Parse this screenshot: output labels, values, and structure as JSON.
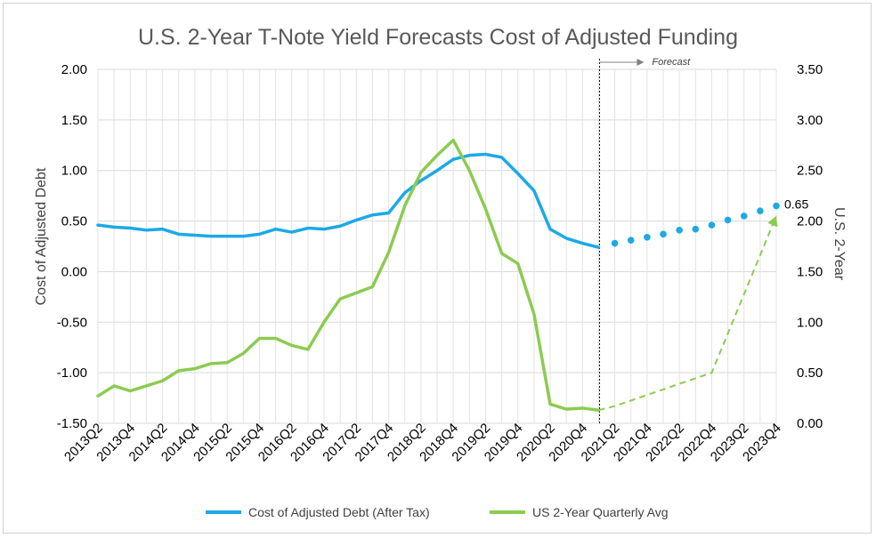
{
  "chart_data": {
    "type": "line",
    "title": "U.S. 2-Year T-Note Yield Forecasts Cost of Adjusted Funding",
    "ylabel_left": "Cost of Adjusted Debt",
    "ylabel_right": "U.S. 2-Year",
    "ylim_left": [
      -1.5,
      2.0
    ],
    "ylim_right": [
      0.0,
      3.5
    ],
    "yticks_left": [
      "2.00",
      "1.50",
      "1.00",
      "0.50",
      "0.00",
      "-0.50",
      "-1.00",
      "-1.50"
    ],
    "yticks_right": [
      "3.50",
      "3.00",
      "2.50",
      "2.00",
      "1.50",
      "1.00",
      "0.50",
      "0.00"
    ],
    "xtick_labels": [
      "2013Q2",
      "2013Q4",
      "2014Q2",
      "2014Q4",
      "2015Q2",
      "2015Q4",
      "2016Q2",
      "2016Q4",
      "2017Q2",
      "2017Q4",
      "2018Q2",
      "2018Q4",
      "2019Q2",
      "2019Q4",
      "2020Q2",
      "2020Q4",
      "2021Q2",
      "2021Q4",
      "2022Q2",
      "2022Q4",
      "2023Q2",
      "2023Q4"
    ],
    "forecast_label": "Forecast",
    "grid": true,
    "legend_position": "bottom",
    "series": [
      {
        "name": "Cost of Adjusted Debt (After Tax)",
        "axis": "left",
        "color": "#1CA9E6",
        "style": "solid",
        "x": [
          "2013Q2",
          "2013Q3",
          "2013Q4",
          "2014Q1",
          "2014Q2",
          "2014Q3",
          "2014Q4",
          "2015Q1",
          "2015Q2",
          "2015Q3",
          "2015Q4",
          "2016Q1",
          "2016Q2",
          "2016Q3",
          "2016Q4",
          "2017Q1",
          "2017Q2",
          "2017Q3",
          "2017Q4",
          "2018Q1",
          "2018Q2",
          "2018Q3",
          "2018Q4",
          "2019Q1",
          "2019Q2",
          "2019Q3",
          "2019Q4",
          "2020Q1",
          "2020Q2",
          "2020Q3",
          "2020Q4",
          "2021Q1"
        ],
        "values": [
          0.46,
          0.44,
          0.43,
          0.41,
          0.42,
          0.37,
          0.36,
          0.35,
          0.35,
          0.35,
          0.37,
          0.42,
          0.39,
          0.43,
          0.42,
          0.45,
          0.51,
          0.56,
          0.58,
          0.78,
          0.9,
          1.0,
          1.11,
          1.15,
          1.16,
          1.13,
          0.97,
          0.8,
          0.42,
          0.33,
          0.28,
          0.24
        ]
      },
      {
        "name": "Cost of Adjusted Debt Forecast",
        "axis": "left",
        "color": "#1CA9E6",
        "style": "dots",
        "x": [
          "2021Q2",
          "2021Q3",
          "2021Q4",
          "2022Q1",
          "2022Q2",
          "2022Q3",
          "2022Q4",
          "2023Q1",
          "2023Q2",
          "2023Q3",
          "2023Q4"
        ],
        "values": [
          0.28,
          0.31,
          0.34,
          0.37,
          0.41,
          0.42,
          0.46,
          0.51,
          0.55,
          0.6,
          0.65
        ],
        "end_label": "0.65"
      },
      {
        "name": "US 2-Year Quarterly Avg",
        "axis": "right",
        "color": "#8CCB50",
        "style": "solid",
        "x": [
          "2013Q2",
          "2013Q3",
          "2013Q4",
          "2014Q1",
          "2014Q2",
          "2014Q3",
          "2014Q4",
          "2015Q1",
          "2015Q2",
          "2015Q3",
          "2015Q4",
          "2016Q1",
          "2016Q2",
          "2016Q3",
          "2016Q4",
          "2017Q1",
          "2017Q2",
          "2017Q3",
          "2017Q4",
          "2018Q1",
          "2018Q2",
          "2018Q3",
          "2018Q4",
          "2019Q1",
          "2019Q2",
          "2019Q3",
          "2019Q4",
          "2020Q1",
          "2020Q2",
          "2020Q3",
          "2020Q4",
          "2021Q1"
        ],
        "values": [
          0.27,
          0.37,
          0.32,
          0.37,
          0.42,
          0.52,
          0.54,
          0.59,
          0.6,
          0.69,
          0.84,
          0.84,
          0.77,
          0.73,
          1.0,
          1.23,
          1.29,
          1.35,
          1.69,
          2.15,
          2.48,
          2.65,
          2.8,
          2.5,
          2.12,
          1.68,
          1.58,
          1.08,
          0.19,
          0.14,
          0.15,
          0.13
        ]
      },
      {
        "name": "US 2-Year Forecast",
        "axis": "right",
        "color": "#8CCB50",
        "style": "dashed",
        "x": [
          "2021Q1",
          "2021Q2",
          "2022Q4",
          "2023Q4"
        ],
        "values": [
          0.13,
          0.17,
          0.5,
          2.05
        ]
      }
    ],
    "legend": [
      {
        "label": "Cost of Adjusted Debt (After Tax)",
        "color": "#1CA9E6"
      },
      {
        "label": "US 2-Year Quarterly Avg",
        "color": "#8CCB50"
      }
    ]
  }
}
